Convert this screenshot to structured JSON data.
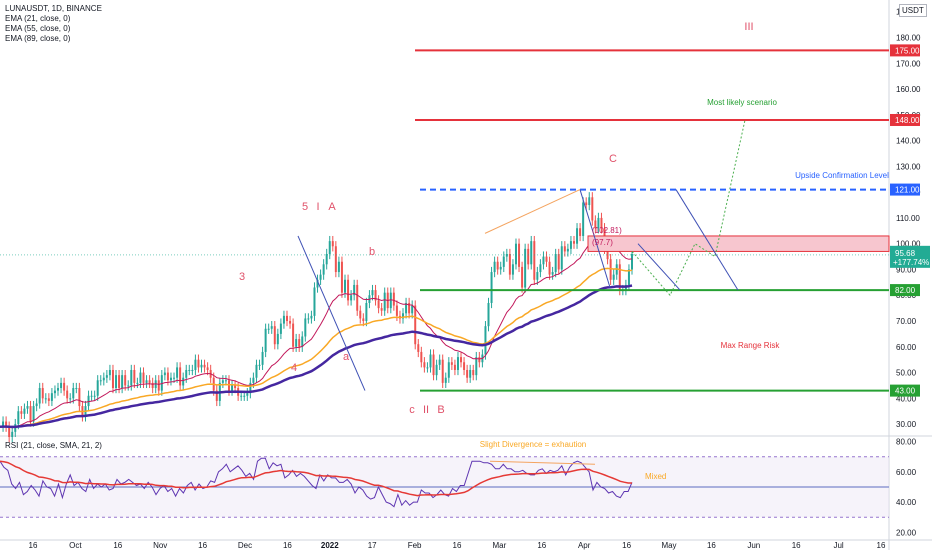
{
  "header": {
    "symbol_line": "LUNAUSDT, 1D, BINANCE",
    "ema21": "EMA (21, close, 0)",
    "ema55": "EMA (55, close, 0)",
    "ema89": "EMA (89, close, 0)",
    "currency": "USDT"
  },
  "rsi_panel": {
    "legend": "RSI (21, close, SMA, 21, 2)",
    "ticks": [
      "80.00",
      "60.00",
      "40.00",
      "20.00"
    ],
    "divergence_label": "Slight Divergence = exhaution",
    "mixed_label": "Mixed",
    "rsi_values": [
      67,
      63,
      61,
      52,
      49,
      53,
      45,
      47,
      51,
      48,
      44,
      54,
      50,
      49,
      44,
      52,
      43,
      52,
      58,
      51,
      53,
      49,
      47,
      55,
      49,
      52,
      50,
      52,
      48,
      49,
      55,
      52,
      53,
      55,
      53,
      51,
      52,
      49,
      53,
      50,
      45,
      49,
      51,
      47,
      49,
      44,
      49,
      46,
      51,
      53,
      48,
      52,
      49,
      50,
      54,
      53,
      60,
      62,
      65,
      60,
      62,
      64,
      61,
      57,
      59,
      55,
      67,
      69,
      69,
      62,
      66,
      64,
      65,
      56,
      58,
      61,
      57,
      59,
      57,
      54,
      51,
      49,
      58,
      54,
      58,
      56,
      56,
      53,
      53,
      55,
      52,
      46,
      50,
      48,
      44,
      42,
      43,
      50,
      45,
      40,
      39,
      37,
      45,
      38,
      41,
      38,
      40,
      40,
      48,
      46,
      46,
      43,
      45,
      48,
      45,
      44,
      49,
      47,
      51,
      51,
      59,
      67,
      67,
      67,
      66,
      66,
      65,
      62,
      62,
      65,
      62,
      62,
      60,
      60,
      61,
      59,
      58,
      58,
      61,
      62,
      59,
      61,
      60,
      61,
      64,
      58,
      63,
      66,
      67,
      66,
      63,
      60,
      48,
      53,
      50,
      49,
      46,
      47,
      44,
      43,
      47,
      47,
      53
    ]
  },
  "price_axis": {
    "ticks": [
      "190.00",
      "180.00",
      "170.00",
      "160.00",
      "150.00",
      "140.00",
      "130.00",
      "120.00",
      "110.00",
      "100.00",
      "90.00",
      "80.00",
      "70.00",
      "60.00",
      "50.00",
      "40.00",
      "30.00"
    ]
  },
  "time_axis": {
    "labels": [
      "16",
      "Oct",
      "16",
      "Nov",
      "16",
      "Dec",
      "16",
      "2022",
      "17",
      "Feb",
      "16",
      "Mar",
      "16",
      "Apr",
      "16",
      "May",
      "16",
      "Jun",
      "16",
      "Jul",
      "16"
    ]
  },
  "levels": [
    {
      "label": "175.00",
      "color": "#e5323b"
    },
    {
      "label": "148.00",
      "color": "#e5323b"
    },
    {
      "label": "121.00",
      "color": "#2962ff"
    },
    {
      "label": "82.00",
      "color": "#26a033"
    },
    {
      "label": "43.00",
      "color": "#26a033"
    }
  ],
  "current_price": {
    "value": "95.68",
    "change": "+177.74%",
    "color": "#22ab94"
  },
  "annotations": {
    "most_likely": "Most likely scenario",
    "upside_conf": "Upside Confirmation Level",
    "max_range": "Max Range Risk",
    "fib1": "(102.81)",
    "fib2": "(97.7)",
    "wave_III": "III",
    "wave_C": "C",
    "wave_5": "5",
    "wave_I": "I",
    "wave_A": "A",
    "wave_3": "3",
    "wave_b": "b",
    "wave_a": "a",
    "wave_4": "4",
    "wave_c": "c",
    "wave_II": "II",
    "wave_B": "B"
  },
  "chart_data": {
    "type": "line",
    "title": "LUNAUSDT, 1D, BINANCE",
    "ylim": [
      20,
      190
    ],
    "series": [
      {
        "name": "LUNAUSDT",
        "values": [
          29,
          31,
          29,
          25,
          27,
          30,
          35,
          34,
          36,
          37,
          31,
          37,
          38,
          44,
          40,
          40,
          39,
          42,
          43,
          44,
          46,
          43,
          40,
          40,
          44,
          44,
          37,
          33,
          37,
          41,
          41,
          41,
          47,
          47,
          48,
          49,
          51,
          44,
          49,
          44,
          49,
          45,
          45,
          51,
          46,
          46,
          50,
          46,
          47,
          46,
          44,
          47,
          43,
          49,
          50,
          47,
          48,
          48,
          52,
          45,
          48,
          51,
          51,
          51,
          55,
          52,
          53,
          52,
          51,
          48,
          43,
          39,
          46,
          47,
          47,
          43,
          45,
          44,
          41,
          41,
          41,
          42,
          46,
          48,
          53,
          53,
          58,
          67,
          67,
          68,
          61,
          65,
          69,
          72,
          70,
          69,
          60,
          63,
          60,
          64,
          71,
          71,
          72,
          83,
          86,
          88,
          92,
          96,
          101,
          99,
          89,
          93,
          81,
          86,
          78,
          80,
          84,
          74,
          71,
          70,
          77,
          80,
          82,
          78,
          75,
          74,
          81,
          75,
          81,
          76,
          72,
          71,
          73,
          77,
          73,
          76,
          61,
          58,
          54,
          52,
          52,
          57,
          49,
          53,
          55,
          46,
          48,
          54,
          53,
          51,
          56,
          54,
          51,
          48,
          51,
          49,
          56,
          54,
          57,
          68,
          77,
          89,
          93,
          90,
          91,
          95,
          96,
          88,
          92,
          100,
          91,
          83,
          98,
          92,
          101,
          86,
          89,
          92,
          95,
          93,
          88,
          89,
          96,
          90,
          99,
          97,
          98,
          101,
          100,
          106,
          103,
          116,
          115,
          118,
          109,
          106,
          110,
          106,
          98,
          94,
          86,
          88,
          92,
          82,
          82,
          84,
          90,
          96
        ]
      },
      {
        "name": "EMA (21, close, 0)",
        "values": []
      },
      {
        "name": "EMA (55, close, 0)",
        "values": []
      },
      {
        "name": "EMA (89, close, 0)",
        "values": []
      }
    ]
  }
}
